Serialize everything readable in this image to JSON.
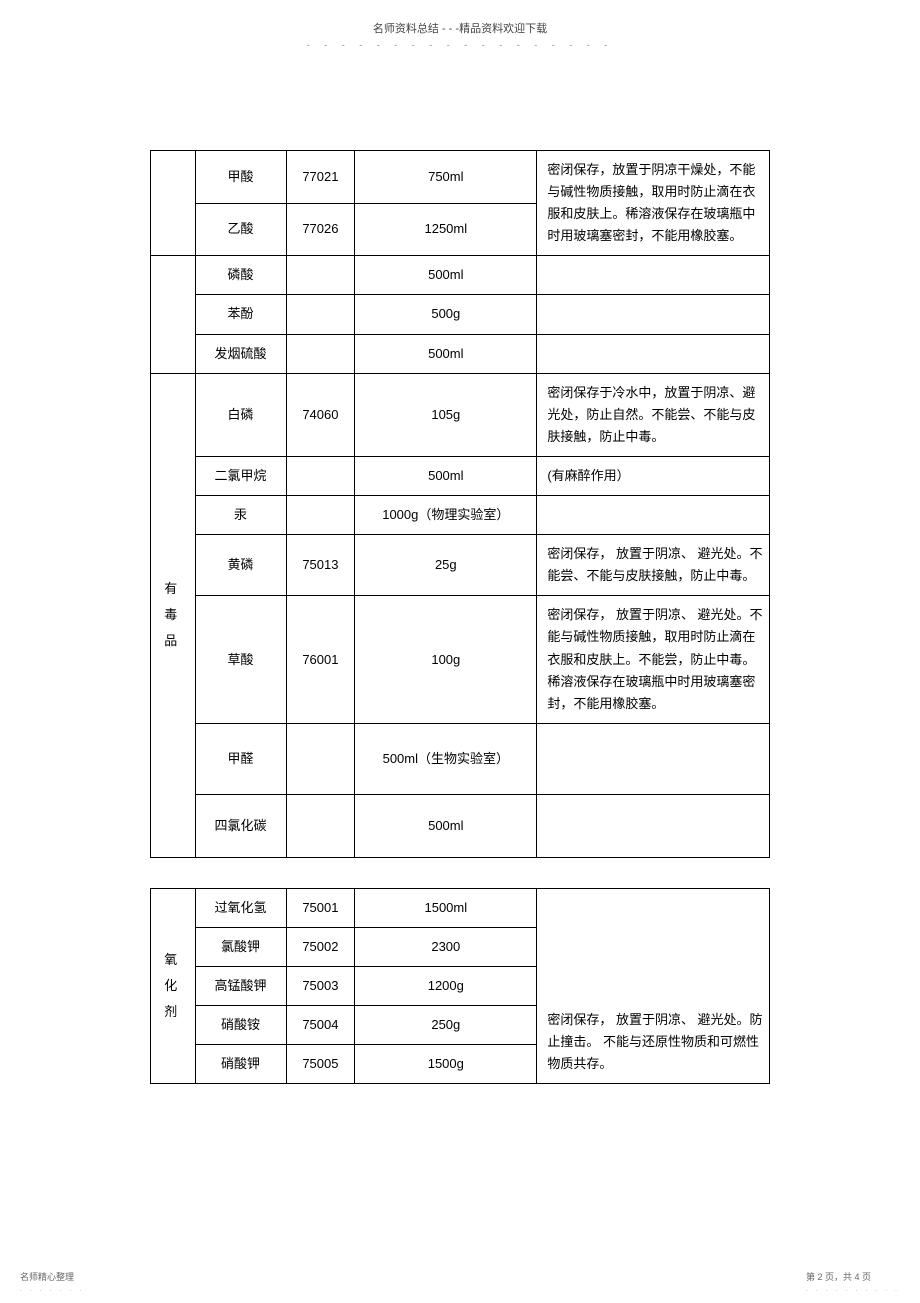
{
  "header": {
    "title": "名师资料总结 - - -精品资料欢迎下载",
    "dots": "- - - - - - - - - - - - - - - - - -"
  },
  "table1": {
    "rows": [
      {
        "cat": "",
        "cat_rowspan": 0,
        "name": "甲酸",
        "code": "77021",
        "qty": "750ml",
        "note": "密闭保存，放置于阴凉干燥处，不能与碱性物质接触，取用时防止滴在衣服和皮肤上。稀溶液保存在玻璃瓶中时用玻璃塞密封，不能用橡胶塞。",
        "note_rowspan": 2
      },
      {
        "name": "乙酸",
        "code": "77026",
        "qty": "1250ml"
      },
      {
        "cat_rowspan": 3,
        "name": "磷酸",
        "code": "",
        "qty": "500ml",
        "note": ""
      },
      {
        "name": "苯酚",
        "code": "",
        "qty": "500g",
        "note": ""
      },
      {
        "name": "发烟硫酸",
        "code": "",
        "qty": "500ml",
        "note": ""
      },
      {
        "cat": "有毒品",
        "cat_rowspan": 7,
        "name": "白磷",
        "code": "74060",
        "qty": "105g",
        "note": "密闭保存于冷水中，放置于阴凉、避光处，防止自然。不能尝、不能与皮肤接触，防止中毒。"
      },
      {
        "name": "二氯甲烷",
        "code": "",
        "qty": "500ml",
        "note": "(有麻醉作用）"
      },
      {
        "name": "汞",
        "code": "",
        "qty": "1000g（物理实验室）",
        "note": ""
      },
      {
        "name": "黄磷",
        "code": "75013",
        "qty": "25g",
        "note": "密闭保存， 放置于阴凉、 避光处。不能尝、不能与皮肤接触，防止中毒。"
      },
      {
        "name": "草酸",
        "code": "76001",
        "qty": "100g",
        "note": "密闭保存， 放置于阴凉、 避光处。不能与碱性物质接触，取用时防止滴在衣服和皮肤上。不能尝，防止中毒。 稀溶液保存在玻璃瓶中时用玻璃塞密封，不能用橡胶塞。"
      },
      {
        "name": "甲醛",
        "code": "",
        "qty": "500ml（生物实验室）",
        "note": ""
      },
      {
        "name": "四氯化碳",
        "code": "",
        "qty": "500ml",
        "note": ""
      }
    ]
  },
  "table2": {
    "rows": [
      {
        "cat": "氧化剂",
        "cat_rowspan": 5,
        "name": "过氧化氢",
        "code": "75001",
        "qty": "1500ml",
        "note": "密闭保存， 放置于阴凉、 避光处。防止撞击。 不能与还原性物质和可燃性物质共存。",
        "note_rowspan": 5
      },
      {
        "name": "氯酸钾",
        "code": "75002",
        "qty": "2300"
      },
      {
        "name": "高锰酸钾",
        "code": "75003",
        "qty": "1200g"
      },
      {
        "name": "硝酸铵",
        "code": "75004",
        "qty": "250g"
      },
      {
        "name": "硝酸钾",
        "code": "75005",
        "qty": "1500g"
      }
    ]
  },
  "footer": {
    "left": "名师精心整理",
    "left_dots": ". . . . . . .",
    "right": "第 2 页，共 4 页",
    "right_dots": ". . . . . . . . . ."
  }
}
